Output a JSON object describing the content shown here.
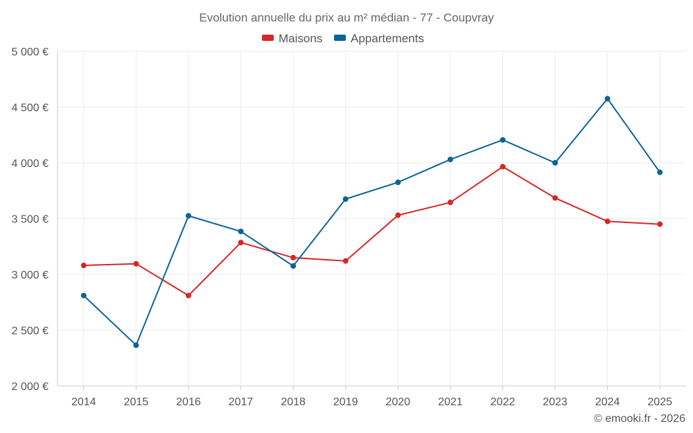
{
  "chart_data": {
    "type": "line",
    "title": "Evolution annuelle du prix au m² médian - 77 - Coupvray",
    "categories": [
      "2014",
      "2015",
      "2016",
      "2017",
      "2018",
      "2019",
      "2020",
      "2021",
      "2022",
      "2023",
      "2024",
      "2025"
    ],
    "series": [
      {
        "name": "Maisons",
        "color": "#d62728",
        "values": [
          3080,
          3095,
          2810,
          3285,
          3150,
          3120,
          3530,
          3645,
          3965,
          3685,
          3475,
          3450
        ]
      },
      {
        "name": "Appartements",
        "color": "#0a6496",
        "values": [
          2810,
          2365,
          3525,
          3385,
          3075,
          3675,
          3825,
          4030,
          4205,
          4000,
          4575,
          3915
        ]
      }
    ],
    "ylim": [
      2000,
      5000
    ],
    "yticks": [
      2000,
      2500,
      3000,
      3500,
      4000,
      4500,
      5000
    ],
    "ytick_labels": [
      "2 000 €",
      "2 500 €",
      "3 000 €",
      "3 500 €",
      "4 000 €",
      "4 500 €",
      "5 000 €"
    ],
    "grid": true,
    "legend_position": "top-center",
    "xlabel": "",
    "ylabel": ""
  },
  "credit": "© emooki.fr - 2026"
}
